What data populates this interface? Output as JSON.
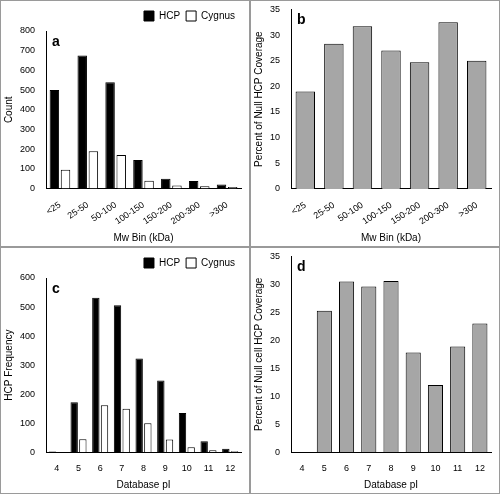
{
  "chart_data": [
    {
      "type": "bar",
      "annotations": [
        "a"
      ],
      "x_label": "Mw Bin (kDa)",
      "y_label": "Count",
      "categories": [
        "<25",
        "25-50",
        "50-100",
        "100-150",
        "150-200",
        "200-300",
        ">300"
      ],
      "series": [
        {
          "name": "HCP",
          "color": "#000000",
          "values": [
            500,
            675,
            540,
            145,
            50,
            38,
            20
          ]
        },
        {
          "name": "Cygnus",
          "color": "#ffffff",
          "values": [
            95,
            190,
            170,
            40,
            15,
            12,
            8
          ]
        }
      ],
      "ylim": [
        0,
        800
      ],
      "yticks": [
        0,
        100,
        200,
        300,
        400,
        500,
        600,
        700,
        800
      ],
      "grid": false,
      "legend": "top-right"
    },
    {
      "type": "bar",
      "annotations": [
        "b"
      ],
      "x_label": "Mw Bin (kDa)",
      "y_label": "Percent of Null HCP Coverage",
      "categories": [
        "<25",
        "25-50",
        "50-100",
        "100-150",
        "150-200",
        "200-300",
        ">300"
      ],
      "values": [
        19,
        28.3,
        31.7,
        27,
        24.7,
        32.5,
        25
      ],
      "color": "#a6a6a6",
      "ylim": [
        0,
        35
      ],
      "yticks": [
        0,
        5,
        10,
        15,
        20,
        25,
        30,
        35
      ],
      "grid": false
    },
    {
      "type": "bar",
      "annotations": [
        "c"
      ],
      "x_label": "Database pI",
      "y_label": "HCP Frequency",
      "categories": [
        "4",
        "5",
        "6",
        "7",
        "8",
        "9",
        "10",
        "11",
        "12"
      ],
      "series": [
        {
          "name": "HCP",
          "color": "#000000",
          "values": [
            2,
            172,
            532,
            506,
            323,
            247,
            135,
            38,
            12
          ]
        },
        {
          "name": "Cygnus",
          "color": "#ffffff",
          "values": [
            0,
            45,
            162,
            150,
            100,
            44,
            17,
            7,
            3
          ]
        }
      ],
      "ylim": [
        0,
        600
      ],
      "yticks": [
        0,
        100,
        200,
        300,
        400,
        500,
        600
      ],
      "grid": false,
      "legend": "top-right"
    },
    {
      "type": "bar",
      "annotations": [
        "d"
      ],
      "x_label": "Database pI",
      "y_label": "Percent of Null cell HCP Coverage",
      "categories": [
        "4",
        "5",
        "6",
        "7",
        "8",
        "9",
        "10",
        "11",
        "12"
      ],
      "values": [
        null,
        25.3,
        30.5,
        29.6,
        30.6,
        17.8,
        12,
        18.9,
        23
      ],
      "color": "#a6a6a6",
      "ylim": [
        0,
        35
      ],
      "yticks": [
        0,
        5,
        10,
        15,
        20,
        25,
        30,
        35
      ],
      "grid": false
    }
  ]
}
